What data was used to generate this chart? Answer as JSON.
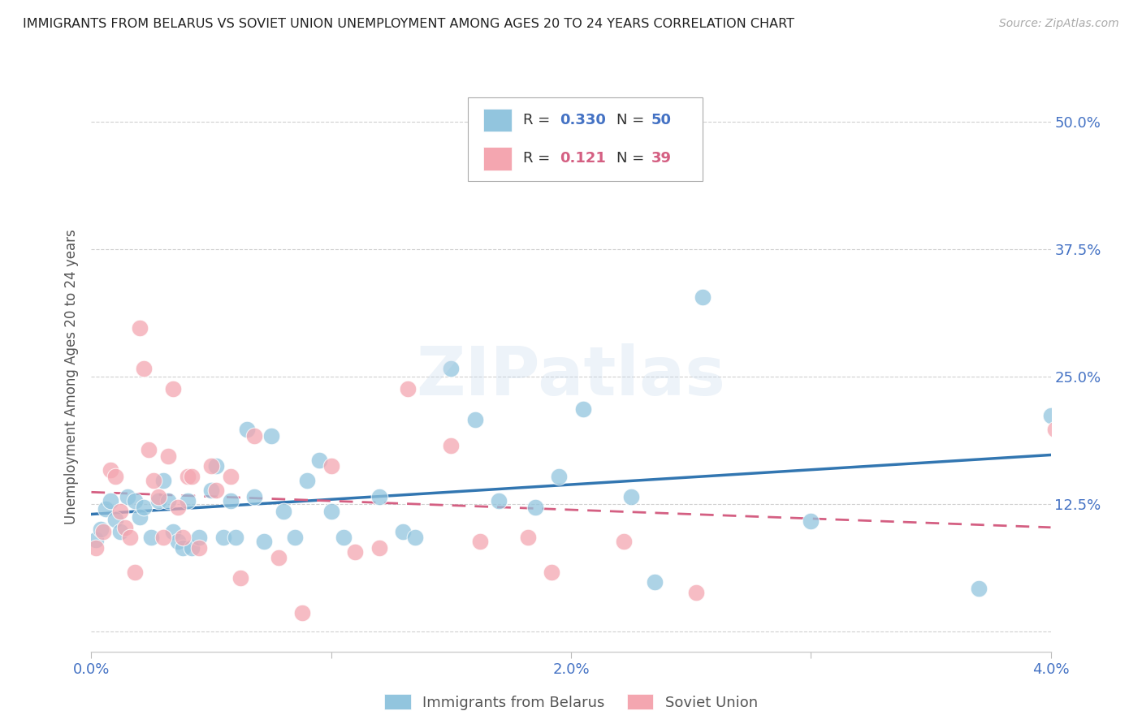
{
  "title": "IMMIGRANTS FROM BELARUS VS SOVIET UNION UNEMPLOYMENT AMONG AGES 20 TO 24 YEARS CORRELATION CHART",
  "source": "Source: ZipAtlas.com",
  "ylabel": "Unemployment Among Ages 20 to 24 years",
  "xlim": [
    0.0,
    0.04
  ],
  "ylim": [
    -0.02,
    0.52
  ],
  "yticks": [
    0.0,
    0.125,
    0.25,
    0.375,
    0.5
  ],
  "ytick_labels": [
    "",
    "12.5%",
    "25.0%",
    "37.5%",
    "50.0%"
  ],
  "xticks": [
    0.0,
    0.01,
    0.02,
    0.03,
    0.04
  ],
  "xtick_labels": [
    "0.0%",
    "",
    "2.0%",
    "",
    "4.0%"
  ],
  "legend_entries": [
    "Immigrants from Belarus",
    "Soviet Union"
  ],
  "blue_color": "#92c5de",
  "pink_color": "#f4a6b0",
  "trend_blue_color": "#3276b1",
  "trend_pink_color": "#d45f82",
  "grid_color": "#d0d0d0",
  "background_color": "#ffffff",
  "blue_x": [
    0.0002,
    0.0004,
    0.0006,
    0.0008,
    0.001,
    0.0012,
    0.0015,
    0.0018,
    0.002,
    0.0022,
    0.0025,
    0.0028,
    0.003,
    0.0032,
    0.0034,
    0.0036,
    0.0038,
    0.004,
    0.0042,
    0.0045,
    0.005,
    0.0052,
    0.0055,
    0.0058,
    0.006,
    0.0065,
    0.0068,
    0.0072,
    0.0075,
    0.008,
    0.0085,
    0.009,
    0.0095,
    0.01,
    0.0105,
    0.012,
    0.013,
    0.0135,
    0.015,
    0.016,
    0.017,
    0.0185,
    0.0195,
    0.0205,
    0.0225,
    0.0235,
    0.0255,
    0.03,
    0.037,
    0.04
  ],
  "blue_y": [
    0.09,
    0.1,
    0.12,
    0.128,
    0.11,
    0.098,
    0.132,
    0.128,
    0.112,
    0.122,
    0.092,
    0.128,
    0.148,
    0.128,
    0.098,
    0.088,
    0.082,
    0.128,
    0.082,
    0.092,
    0.138,
    0.162,
    0.092,
    0.128,
    0.092,
    0.198,
    0.132,
    0.088,
    0.192,
    0.118,
    0.092,
    0.148,
    0.168,
    0.118,
    0.092,
    0.132,
    0.098,
    0.092,
    0.258,
    0.208,
    0.128,
    0.122,
    0.152,
    0.218,
    0.132,
    0.048,
    0.328,
    0.108,
    0.042,
    0.212
  ],
  "pink_x": [
    0.0002,
    0.0005,
    0.0008,
    0.001,
    0.0012,
    0.0014,
    0.0016,
    0.0018,
    0.002,
    0.0022,
    0.0024,
    0.0026,
    0.0028,
    0.003,
    0.0032,
    0.0034,
    0.0036,
    0.0038,
    0.004,
    0.0042,
    0.0045,
    0.005,
    0.0052,
    0.0058,
    0.0062,
    0.0068,
    0.0078,
    0.0088,
    0.01,
    0.011,
    0.012,
    0.0132,
    0.015,
    0.0162,
    0.0182,
    0.0192,
    0.0222,
    0.0252,
    0.0402
  ],
  "pink_y": [
    0.082,
    0.098,
    0.158,
    0.152,
    0.118,
    0.102,
    0.092,
    0.058,
    0.298,
    0.258,
    0.178,
    0.148,
    0.132,
    0.092,
    0.172,
    0.238,
    0.122,
    0.092,
    0.152,
    0.152,
    0.082,
    0.162,
    0.138,
    0.152,
    0.052,
    0.192,
    0.072,
    0.018,
    0.162,
    0.078,
    0.082,
    0.238,
    0.182,
    0.088,
    0.092,
    0.058,
    0.088,
    0.038,
    0.198
  ]
}
